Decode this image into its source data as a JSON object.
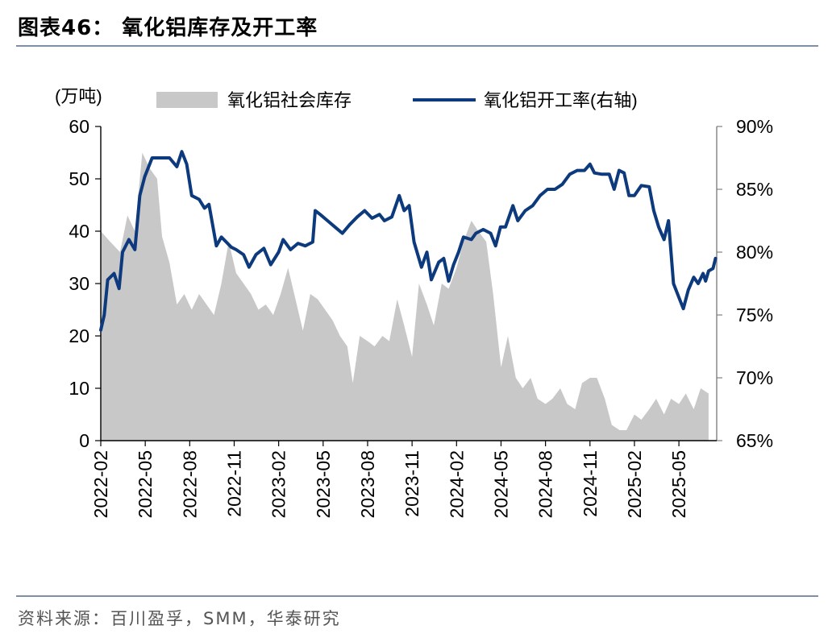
{
  "title": "图表46：  氧化铝库存及开工率",
  "source": "资料来源：百川盈孚，SMM，华泰研究",
  "colors": {
    "inventory": "#c8c8c8",
    "utilization": "#0d3a7d",
    "rule": "#7f8fa6"
  },
  "chart_data": {
    "type": "area+line",
    "yunit_left": "(万吨)",
    "legend_placement": "top",
    "legend": [
      "氧化铝社会库存",
      "氧化铝开工率(右轴)"
    ],
    "ylim_left": [
      0,
      60
    ],
    "yticks_left": [
      "0",
      "10",
      "20",
      "30",
      "40",
      "50",
      "60"
    ],
    "ylim_right": [
      65,
      90
    ],
    "yticks_right": [
      "65%",
      "70%",
      "75%",
      "80%",
      "85%",
      "90%"
    ],
    "xticks": [
      "2022-02",
      "2022-05",
      "2022-08",
      "2022-11",
      "2023-02",
      "2023-05",
      "2023-08",
      "2023-11",
      "2024-02",
      "2024-05",
      "2024-08",
      "2024-11",
      "2025-02",
      "2025-05"
    ],
    "x_start": "2022-02",
    "x_end": "2025-07",
    "series": [
      {
        "name": "氧化铝社会库存",
        "type": "area",
        "axis": "left",
        "points": [
          [
            "2022-02-01",
            40
          ],
          [
            "2022-02-20",
            38
          ],
          [
            "2022-03-10",
            36
          ],
          [
            "2022-03-25",
            43
          ],
          [
            "2022-04-10",
            40
          ],
          [
            "2022-04-25",
            55
          ],
          [
            "2022-05-10",
            52
          ],
          [
            "2022-05-25",
            50
          ],
          [
            "2022-06-05",
            39
          ],
          [
            "2022-06-20",
            34
          ],
          [
            "2022-07-05",
            26
          ],
          [
            "2022-07-20",
            28
          ],
          [
            "2022-08-05",
            25
          ],
          [
            "2022-08-20",
            28
          ],
          [
            "2022-09-05",
            26
          ],
          [
            "2022-09-20",
            24
          ],
          [
            "2022-10-05",
            30
          ],
          [
            "2022-10-20",
            38
          ],
          [
            "2022-11-05",
            32
          ],
          [
            "2022-11-20",
            30
          ],
          [
            "2022-12-05",
            28
          ],
          [
            "2022-12-20",
            25
          ],
          [
            "2023-01-05",
            26
          ],
          [
            "2023-01-20",
            24
          ],
          [
            "2023-02-05",
            28
          ],
          [
            "2023-02-20",
            33
          ],
          [
            "2023-03-05",
            27
          ],
          [
            "2023-03-20",
            21
          ],
          [
            "2023-04-05",
            28
          ],
          [
            "2023-04-20",
            27
          ],
          [
            "2023-05-05",
            25
          ],
          [
            "2023-05-20",
            23
          ],
          [
            "2023-06-05",
            20
          ],
          [
            "2023-06-20",
            18
          ],
          [
            "2023-07-01",
            11
          ],
          [
            "2023-07-15",
            20
          ],
          [
            "2023-08-01",
            19
          ],
          [
            "2023-08-15",
            18
          ],
          [
            "2023-09-01",
            20
          ],
          [
            "2023-09-15",
            19
          ],
          [
            "2023-10-01",
            27
          ],
          [
            "2023-10-15",
            22
          ],
          [
            "2023-11-01",
            16
          ],
          [
            "2023-11-15",
            30
          ],
          [
            "2023-12-01",
            26
          ],
          [
            "2023-12-15",
            22
          ],
          [
            "2024-01-01",
            30
          ],
          [
            "2024-01-15",
            29
          ],
          [
            "2024-02-01",
            33
          ],
          [
            "2024-02-15",
            38
          ],
          [
            "2024-03-01",
            42
          ],
          [
            "2024-03-15",
            40
          ],
          [
            "2024-04-01",
            38
          ],
          [
            "2024-04-15",
            28
          ],
          [
            "2024-05-01",
            14
          ],
          [
            "2024-05-15",
            20
          ],
          [
            "2024-06-01",
            12
          ],
          [
            "2024-06-15",
            10
          ],
          [
            "2024-07-01",
            12
          ],
          [
            "2024-07-15",
            8
          ],
          [
            "2024-08-01",
            7
          ],
          [
            "2024-08-15",
            8
          ],
          [
            "2024-09-01",
            10
          ],
          [
            "2024-09-15",
            7
          ],
          [
            "2024-10-01",
            6
          ],
          [
            "2024-10-15",
            11
          ],
          [
            "2024-11-01",
            12
          ],
          [
            "2024-11-15",
            12
          ],
          [
            "2024-12-01",
            8
          ],
          [
            "2024-12-15",
            3
          ],
          [
            "2025-01-01",
            2
          ],
          [
            "2025-01-15",
            2
          ],
          [
            "2025-02-01",
            5
          ],
          [
            "2025-02-15",
            4
          ],
          [
            "2025-03-01",
            6
          ],
          [
            "2025-03-15",
            8
          ],
          [
            "2025-04-01",
            5
          ],
          [
            "2025-04-15",
            8
          ],
          [
            "2025-05-01",
            7
          ],
          [
            "2025-05-15",
            9
          ],
          [
            "2025-06-01",
            6
          ],
          [
            "2025-06-15",
            10
          ],
          [
            "2025-07-01",
            9
          ]
        ]
      },
      {
        "name": "氧化铝开工率(右轴)",
        "type": "line",
        "axis": "right",
        "points": [
          [
            "2022-02-01",
            73.8
          ],
          [
            "2022-02-08",
            75
          ],
          [
            "2022-02-15",
            77.8
          ],
          [
            "2022-02-28",
            78.3
          ],
          [
            "2022-03-08",
            77.1
          ],
          [
            "2022-03-15",
            80
          ],
          [
            "2022-03-28",
            81
          ],
          [
            "2022-04-10",
            80.2
          ],
          [
            "2022-04-20",
            84.5
          ],
          [
            "2022-04-30",
            86
          ],
          [
            "2022-05-15",
            87.5
          ],
          [
            "2022-06-01",
            87.5
          ],
          [
            "2022-06-20",
            87.5
          ],
          [
            "2022-07-05",
            86.8
          ],
          [
            "2022-07-15",
            88
          ],
          [
            "2022-07-25",
            87
          ],
          [
            "2022-08-05",
            84.5
          ],
          [
            "2022-08-20",
            84.2
          ],
          [
            "2022-09-01",
            83.5
          ],
          [
            "2022-09-10",
            83.8
          ],
          [
            "2022-09-25",
            80.5
          ],
          [
            "2022-10-05",
            81.2
          ],
          [
            "2022-10-15",
            80.8
          ],
          [
            "2022-10-25",
            80.4
          ],
          [
            "2022-11-05",
            80.2
          ],
          [
            "2022-11-20",
            79.8
          ],
          [
            "2022-12-01",
            78.8
          ],
          [
            "2022-12-15",
            79.8
          ],
          [
            "2023-01-01",
            80.3
          ],
          [
            "2023-01-15",
            79
          ],
          [
            "2023-02-01",
            80
          ],
          [
            "2023-02-10",
            81
          ],
          [
            "2023-02-25",
            80.2
          ],
          [
            "2023-03-10",
            80.7
          ],
          [
            "2023-03-25",
            80.5
          ],
          [
            "2023-04-10",
            80.8
          ],
          [
            "2023-04-15",
            83.3
          ],
          [
            "2023-04-25",
            83
          ],
          [
            "2023-05-10",
            82.5
          ],
          [
            "2023-05-25",
            82
          ],
          [
            "2023-06-10",
            81.5
          ],
          [
            "2023-06-25",
            82.2
          ],
          [
            "2023-07-10",
            82.8
          ],
          [
            "2023-07-25",
            83.3
          ],
          [
            "2023-08-10",
            82.7
          ],
          [
            "2023-08-25",
            83
          ],
          [
            "2023-09-05",
            82.5
          ],
          [
            "2023-09-20",
            82.8
          ],
          [
            "2023-10-05",
            84.5
          ],
          [
            "2023-10-15",
            83.3
          ],
          [
            "2023-10-25",
            83.7
          ],
          [
            "2023-11-05",
            80.8
          ],
          [
            "2023-11-20",
            78.8
          ],
          [
            "2023-12-01",
            80
          ],
          [
            "2023-12-10",
            77.8
          ],
          [
            "2023-12-25",
            79.2
          ],
          [
            "2024-01-05",
            79.5
          ],
          [
            "2024-01-15",
            77.7
          ],
          [
            "2024-01-25",
            79
          ],
          [
            "2024-02-05",
            80
          ],
          [
            "2024-02-15",
            81.2
          ],
          [
            "2024-03-01",
            81
          ],
          [
            "2024-03-10",
            81.5
          ],
          [
            "2024-03-25",
            81.8
          ],
          [
            "2024-04-10",
            81.5
          ],
          [
            "2024-04-20",
            80.5
          ],
          [
            "2024-04-30",
            82
          ],
          [
            "2024-05-10",
            82
          ],
          [
            "2024-05-25",
            83.7
          ],
          [
            "2024-06-05",
            82.5
          ],
          [
            "2024-06-20",
            83.3
          ],
          [
            "2024-07-05",
            83.7
          ],
          [
            "2024-07-20",
            84.5
          ],
          [
            "2024-08-05",
            85
          ],
          [
            "2024-08-20",
            85
          ],
          [
            "2024-09-05",
            85.4
          ],
          [
            "2024-09-20",
            86.2
          ],
          [
            "2024-10-05",
            86.5
          ],
          [
            "2024-10-20",
            86.5
          ],
          [
            "2024-11-01",
            87
          ],
          [
            "2024-11-10",
            86.3
          ],
          [
            "2024-11-25",
            86.2
          ],
          [
            "2024-12-10",
            86.2
          ],
          [
            "2024-12-20",
            85
          ],
          [
            "2024-12-30",
            86.5
          ],
          [
            "2025-01-10",
            86.3
          ],
          [
            "2025-01-20",
            84.5
          ],
          [
            "2025-02-01",
            84.5
          ],
          [
            "2025-02-15",
            85.3
          ],
          [
            "2025-03-01",
            85.2
          ],
          [
            "2025-03-10",
            83.3
          ],
          [
            "2025-03-20",
            82
          ],
          [
            "2025-04-01",
            81
          ],
          [
            "2025-04-10",
            82.5
          ],
          [
            "2025-04-20",
            77.5
          ],
          [
            "2025-05-01",
            76.4
          ],
          [
            "2025-05-10",
            75.5
          ],
          [
            "2025-05-20",
            77
          ],
          [
            "2025-06-01",
            78
          ],
          [
            "2025-06-10",
            77.5
          ],
          [
            "2025-06-20",
            78.3
          ],
          [
            "2025-06-25",
            77.7
          ],
          [
            "2025-07-01",
            78.5
          ],
          [
            "2025-07-10",
            78.7
          ],
          [
            "2025-07-15",
            79.5
          ]
        ]
      }
    ]
  }
}
